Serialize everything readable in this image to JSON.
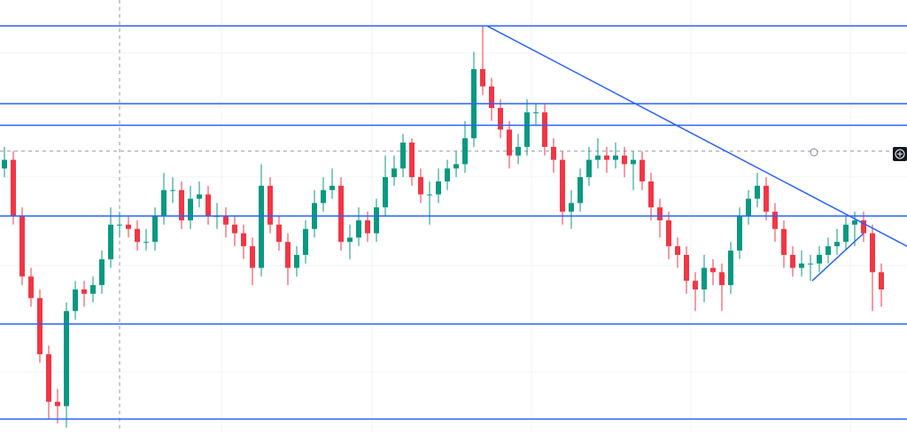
{
  "chart_data": {
    "type": "candlestick",
    "xlim": [
      -0.5,
      101.9
    ],
    "ylim": [
      0,
      100
    ],
    "up_color": "#089981",
    "down_color": "#f23645",
    "line_color": "#2962ff",
    "open": [
      61,
      63,
      50,
      36,
      31,
      18,
      7,
      6,
      28,
      33,
      32,
      34,
      40,
      48,
      48,
      47,
      44,
      44,
      50,
      56,
      56,
      49,
      54,
      55,
      50,
      50,
      48,
      46,
      43,
      38,
      57,
      48,
      44,
      38,
      41,
      47,
      53,
      56,
      57,
      44,
      45,
      49,
      46,
      52,
      59,
      61,
      67,
      59,
      55,
      55,
      58,
      61,
      62,
      68,
      84,
      80,
      75,
      70,
      64,
      66,
      74,
      74,
      66,
      63,
      51,
      53,
      59,
      63,
      64,
      63,
      64,
      62,
      63,
      58,
      52,
      49,
      43,
      41,
      35,
      33,
      38,
      37,
      34,
      42,
      50,
      54,
      57,
      51,
      47,
      41,
      38,
      39,
      39,
      41,
      43,
      44,
      48,
      49,
      46,
      37
    ],
    "high": [
      66,
      65,
      52,
      38,
      33,
      20,
      10,
      30,
      35,
      35,
      36,
      42,
      52,
      51,
      50,
      49,
      47,
      52,
      60,
      59,
      58,
      57,
      58,
      57,
      53,
      52,
      50,
      48,
      45,
      62,
      59,
      50,
      46,
      43,
      49,
      56,
      59,
      61,
      59,
      48,
      52,
      51,
      54,
      64,
      64,
      69,
      68,
      61,
      58,
      61,
      63,
      65,
      72,
      88,
      94,
      82,
      77,
      72,
      69,
      77,
      76,
      76,
      68,
      65,
      56,
      61,
      66,
      68,
      66,
      67,
      66,
      65,
      65,
      60,
      54,
      51,
      45,
      43,
      37,
      41,
      40,
      39,
      44,
      52,
      56,
      60,
      59,
      53,
      49,
      43,
      42,
      41,
      43,
      45,
      47,
      50,
      51,
      51,
      48,
      39
    ],
    "low": [
      59,
      48,
      34,
      29,
      16,
      3,
      2,
      1,
      26,
      29,
      30,
      32,
      38,
      45,
      45,
      42,
      42,
      42,
      48,
      53,
      47,
      47,
      52,
      48,
      47,
      45,
      43,
      40,
      34,
      36,
      46,
      42,
      34,
      36,
      39,
      45,
      51,
      54,
      42,
      40,
      43,
      44,
      44,
      50,
      57,
      59,
      57,
      53,
      48,
      53,
      56,
      59,
      60,
      66,
      78,
      72,
      68,
      61,
      62,
      64,
      71,
      64,
      60,
      48,
      47,
      51,
      57,
      61,
      60,
      61,
      59,
      56,
      56,
      49,
      45,
      40,
      38,
      32,
      28,
      30,
      34,
      28,
      32,
      40,
      48,
      52,
      49,
      44,
      38,
      36,
      36,
      35,
      37,
      39,
      41,
      42,
      43,
      44,
      28,
      29
    ],
    "close": [
      63,
      50,
      36,
      31,
      18,
      7,
      6,
      28,
      33,
      32,
      34,
      40,
      48,
      48,
      47,
      44,
      44,
      50,
      56,
      56,
      49,
      54,
      55,
      50,
      50,
      48,
      46,
      43,
      38,
      57,
      48,
      44,
      38,
      41,
      47,
      53,
      56,
      57,
      44,
      45,
      49,
      46,
      52,
      59,
      61,
      67,
      59,
      55,
      55,
      58,
      61,
      62,
      68,
      84,
      80,
      75,
      70,
      64,
      66,
      74,
      74,
      66,
      63,
      51,
      53,
      59,
      63,
      64,
      63,
      64,
      62,
      63,
      58,
      52,
      49,
      43,
      41,
      35,
      33,
      38,
      37,
      34,
      42,
      50,
      54,
      57,
      51,
      47,
      41,
      38,
      39,
      39,
      41,
      43,
      44,
      48,
      49,
      46,
      37,
      33
    ],
    "hlines": [
      94,
      76,
      71,
      50,
      25,
      3
    ],
    "crosshair_x": 13,
    "crosshair_y": 65,
    "trendlines": [
      {
        "x": [
          54.5,
          101.9
        ],
        "y": [
          94,
          43
        ]
      },
      {
        "x": [
          91.2,
          97
        ],
        "y": [
          35,
          46
        ]
      }
    ]
  }
}
